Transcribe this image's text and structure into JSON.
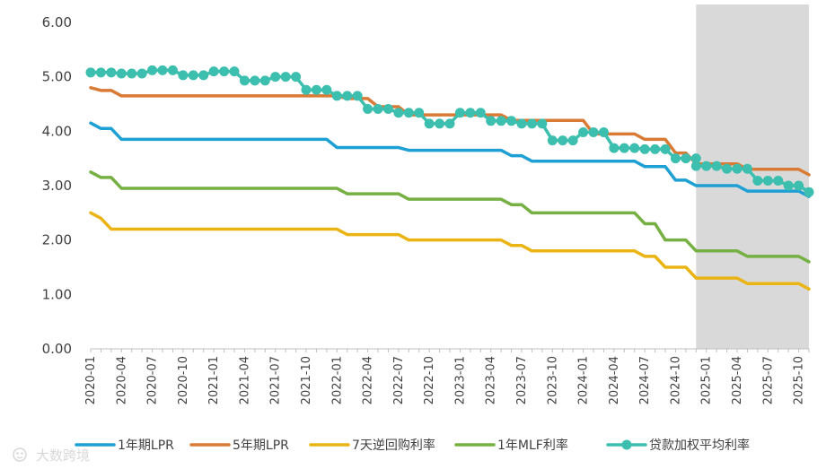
{
  "chart_data": {
    "type": "line",
    "title": "",
    "xlabel": "",
    "ylabel": "",
    "ylim": [
      0,
      6
    ],
    "y_ticks": [
      "0.00",
      "1.00",
      "2.00",
      "3.00",
      "4.00",
      "5.00",
      "6.00"
    ],
    "x_tick_labels": [
      "2020-01",
      "2020-04",
      "2020-07",
      "2020-10",
      "2021-01",
      "2021-04",
      "2021-07",
      "2021-10",
      "2022-01",
      "2022-04",
      "2022-07",
      "2022-10",
      "2023-01",
      "2023-04",
      "2023-07",
      "2023-10",
      "2024-01",
      "2024-04",
      "2024-07",
      "2024-10",
      "2025-01",
      "2025-04",
      "2025-07",
      "2025-10"
    ],
    "x_range": [
      "2020-01",
      "2025-11"
    ],
    "shaded_region": {
      "from": "2024-12",
      "to": "2025-11",
      "color": "#d9d9d9"
    },
    "grid": false,
    "legend_position": "bottom",
    "series": [
      {
        "name": "1年期LPR",
        "color": "#1ea0d4",
        "markers": false,
        "points": [
          [
            "2020-01",
            4.15
          ],
          [
            "2020-02",
            4.05
          ],
          [
            "2020-03",
            4.05
          ],
          [
            "2020-04",
            3.85
          ],
          [
            "2021-12",
            3.85
          ],
          [
            "2022-01",
            3.7
          ],
          [
            "2022-07",
            3.7
          ],
          [
            "2022-08",
            3.65
          ],
          [
            "2023-05",
            3.65
          ],
          [
            "2023-06",
            3.55
          ],
          [
            "2023-07",
            3.55
          ],
          [
            "2023-08",
            3.45
          ],
          [
            "2024-06",
            3.45
          ],
          [
            "2024-07",
            3.35
          ],
          [
            "2024-09",
            3.35
          ],
          [
            "2024-10",
            3.1
          ],
          [
            "2024-11",
            3.1
          ],
          [
            "2024-12",
            3.0
          ],
          [
            "2025-04",
            3.0
          ],
          [
            "2025-05",
            2.9
          ],
          [
            "2025-10",
            2.9
          ],
          [
            "2025-11",
            2.8
          ]
        ]
      },
      {
        "name": "5年期LPR",
        "color": "#d97a35",
        "markers": false,
        "points": [
          [
            "2020-01",
            4.8
          ],
          [
            "2020-02",
            4.75
          ],
          [
            "2020-03",
            4.75
          ],
          [
            "2020-04",
            4.65
          ],
          [
            "2022-01",
            4.65
          ],
          [
            "2022-02",
            4.6
          ],
          [
            "2022-04",
            4.6
          ],
          [
            "2022-05",
            4.45
          ],
          [
            "2022-07",
            4.45
          ],
          [
            "2022-08",
            4.3
          ],
          [
            "2023-05",
            4.3
          ],
          [
            "2023-06",
            4.2
          ],
          [
            "2024-01",
            4.2
          ],
          [
            "2024-02",
            3.95
          ],
          [
            "2024-06",
            3.95
          ],
          [
            "2024-07",
            3.85
          ],
          [
            "2024-09",
            3.85
          ],
          [
            "2024-10",
            3.6
          ],
          [
            "2024-11",
            3.6
          ],
          [
            "2024-12",
            3.4
          ],
          [
            "2025-04",
            3.4
          ],
          [
            "2025-05",
            3.3
          ],
          [
            "2025-10",
            3.3
          ],
          [
            "2025-11",
            3.2
          ]
        ]
      },
      {
        "name": "7天逆回购利率",
        "color": "#eab514",
        "markers": false,
        "points": [
          [
            "2020-01",
            2.5
          ],
          [
            "2020-02",
            2.4
          ],
          [
            "2020-03",
            2.2
          ],
          [
            "2022-01",
            2.2
          ],
          [
            "2022-02",
            2.1
          ],
          [
            "2022-07",
            2.1
          ],
          [
            "2022-08",
            2.0
          ],
          [
            "2023-05",
            2.0
          ],
          [
            "2023-06",
            1.9
          ],
          [
            "2023-07",
            1.9
          ],
          [
            "2023-08",
            1.8
          ],
          [
            "2024-06",
            1.8
          ],
          [
            "2024-07",
            1.7
          ],
          [
            "2024-08",
            1.7
          ],
          [
            "2024-09",
            1.5
          ],
          [
            "2024-11",
            1.5
          ],
          [
            "2024-12",
            1.3
          ],
          [
            "2025-04",
            1.3
          ],
          [
            "2025-05",
            1.2
          ],
          [
            "2025-10",
            1.2
          ],
          [
            "2025-11",
            1.1
          ]
        ]
      },
      {
        "name": "1年MLF利率",
        "color": "#76b043",
        "markers": false,
        "points": [
          [
            "2020-01",
            3.25
          ],
          [
            "2020-02",
            3.15
          ],
          [
            "2020-03",
            3.15
          ],
          [
            "2020-04",
            2.95
          ],
          [
            "2022-01",
            2.95
          ],
          [
            "2022-02",
            2.85
          ],
          [
            "2022-07",
            2.85
          ],
          [
            "2022-08",
            2.75
          ],
          [
            "2023-05",
            2.75
          ],
          [
            "2023-06",
            2.65
          ],
          [
            "2023-07",
            2.65
          ],
          [
            "2023-08",
            2.5
          ],
          [
            "2024-06",
            2.5
          ],
          [
            "2024-07",
            2.3
          ],
          [
            "2024-08",
            2.3
          ],
          [
            "2024-09",
            2.0
          ],
          [
            "2024-11",
            2.0
          ],
          [
            "2024-12",
            1.8
          ],
          [
            "2025-04",
            1.8
          ],
          [
            "2025-05",
            1.7
          ],
          [
            "2025-10",
            1.7
          ],
          [
            "2025-11",
            1.6
          ]
        ]
      },
      {
        "name": "贷款加权平均利率",
        "color": "#3cbfae",
        "markers": true,
        "points": [
          [
            "2020-01",
            5.08
          ],
          [
            "2020-02",
            5.08
          ],
          [
            "2020-03",
            5.08
          ],
          [
            "2020-04",
            5.06
          ],
          [
            "2020-05",
            5.06
          ],
          [
            "2020-06",
            5.06
          ],
          [
            "2020-07",
            5.12
          ],
          [
            "2020-08",
            5.12
          ],
          [
            "2020-09",
            5.12
          ],
          [
            "2020-10",
            5.03
          ],
          [
            "2020-11",
            5.03
          ],
          [
            "2020-12",
            5.03
          ],
          [
            "2021-01",
            5.1
          ],
          [
            "2021-02",
            5.1
          ],
          [
            "2021-03",
            5.1
          ],
          [
            "2021-04",
            4.93
          ],
          [
            "2021-05",
            4.93
          ],
          [
            "2021-06",
            4.93
          ],
          [
            "2021-07",
            5.0
          ],
          [
            "2021-08",
            5.0
          ],
          [
            "2021-09",
            5.0
          ],
          [
            "2021-10",
            4.76
          ],
          [
            "2021-11",
            4.76
          ],
          [
            "2021-12",
            4.76
          ],
          [
            "2022-01",
            4.65
          ],
          [
            "2022-02",
            4.65
          ],
          [
            "2022-03",
            4.65
          ],
          [
            "2022-04",
            4.41
          ],
          [
            "2022-05",
            4.41
          ],
          [
            "2022-06",
            4.41
          ],
          [
            "2022-07",
            4.34
          ],
          [
            "2022-08",
            4.34
          ],
          [
            "2022-09",
            4.34
          ],
          [
            "2022-10",
            4.14
          ],
          [
            "2022-11",
            4.14
          ],
          [
            "2022-12",
            4.14
          ],
          [
            "2023-01",
            4.34
          ],
          [
            "2023-02",
            4.34
          ],
          [
            "2023-03",
            4.34
          ],
          [
            "2023-04",
            4.19
          ],
          [
            "2023-05",
            4.19
          ],
          [
            "2023-06",
            4.19
          ],
          [
            "2023-07",
            4.14
          ],
          [
            "2023-08",
            4.14
          ],
          [
            "2023-09",
            4.14
          ],
          [
            "2023-10",
            3.83
          ],
          [
            "2023-11",
            3.83
          ],
          [
            "2023-12",
            3.83
          ],
          [
            "2024-01",
            3.98
          ],
          [
            "2024-02",
            3.98
          ],
          [
            "2024-03",
            3.98
          ],
          [
            "2024-04",
            3.69
          ],
          [
            "2024-05",
            3.69
          ],
          [
            "2024-06",
            3.69
          ],
          [
            "2024-07",
            3.67
          ],
          [
            "2024-08",
            3.67
          ],
          [
            "2024-09",
            3.67
          ],
          [
            "2024-10",
            3.5
          ],
          [
            "2024-11",
            3.5
          ],
          [
            "2024-12",
            3.5
          ],
          [
            "2024-12",
            3.36
          ],
          [
            "2025-01",
            3.36
          ],
          [
            "2025-02",
            3.36
          ],
          [
            "2025-03",
            3.31
          ],
          [
            "2025-04",
            3.31
          ],
          [
            "2025-05",
            3.31
          ],
          [
            "2025-06",
            3.09
          ],
          [
            "2025-07",
            3.09
          ],
          [
            "2025-08",
            3.09
          ],
          [
            "2025-09",
            3.0
          ],
          [
            "2025-10",
            3.0
          ],
          [
            "2025-11",
            2.88
          ]
        ]
      }
    ]
  },
  "watermark": {
    "text": "大数跨境"
  }
}
